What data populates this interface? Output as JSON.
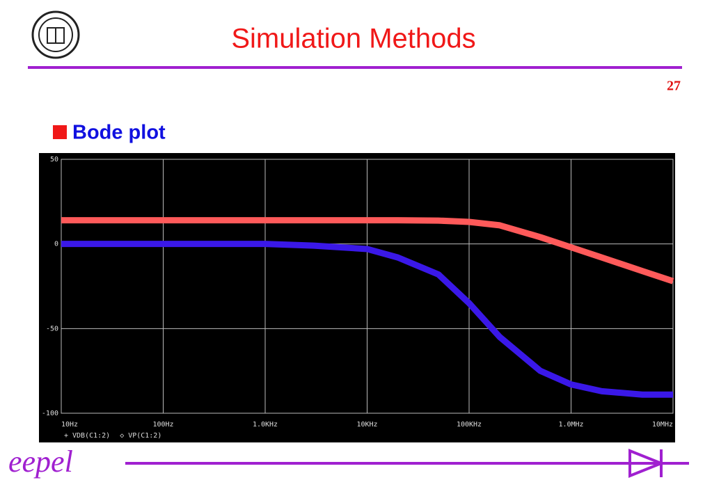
{
  "slide": {
    "title": "Simulation Methods",
    "page": "27",
    "bullet": "Bode plot",
    "footer": "eepel"
  },
  "chart_data": {
    "type": "line",
    "x": [
      10,
      30,
      100,
      300,
      1000,
      3000,
      10000,
      20000,
      50000,
      100000,
      200000,
      500000,
      1000000,
      2000000,
      5000000,
      10000000
    ],
    "series": [
      {
        "name": "VDB(C1:2)",
        "color": "#ff5a5a",
        "values": [
          14,
          14,
          14,
          14,
          14,
          14,
          14,
          14,
          13.8,
          13,
          11,
          4,
          -2,
          -8,
          -16,
          -22
        ]
      },
      {
        "name": "VP(C1:2)",
        "color": "#3a18e8",
        "values": [
          0,
          0,
          0,
          0,
          0,
          -1,
          -3,
          -8,
          -18,
          -35,
          -55,
          -75,
          -83,
          -87,
          -89,
          -89
        ]
      }
    ],
    "xlog": true,
    "xlim": [
      10,
      10000000
    ],
    "xticks": [
      {
        "value": 10,
        "label": "10Hz"
      },
      {
        "value": 100,
        "label": "100Hz"
      },
      {
        "value": 1000,
        "label": "1.0KHz"
      },
      {
        "value": 10000,
        "label": "10KHz"
      },
      {
        "value": 100000,
        "label": "100KHz"
      },
      {
        "value": 1000000,
        "label": "1.0MHz"
      },
      {
        "value": 10000000,
        "label": "10MHz"
      }
    ],
    "ylim": [
      -100,
      50
    ],
    "yticks": [
      50,
      0,
      -50,
      -100
    ],
    "grid": true
  }
}
